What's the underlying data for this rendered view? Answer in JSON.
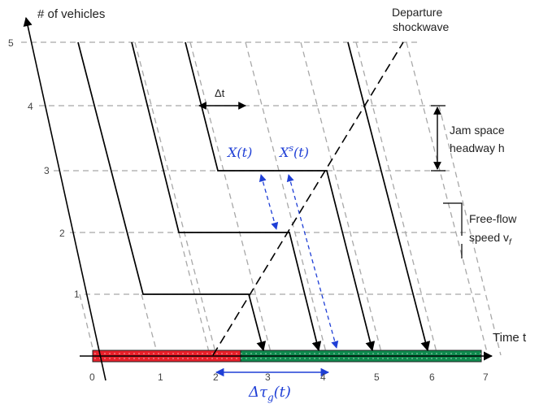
{
  "axes": {
    "y_label": "# of vehicles",
    "x_label": "Time t",
    "y_ticks": [
      "1",
      "2",
      "3",
      "4",
      "5"
    ],
    "x_ticks": [
      "0",
      "1",
      "2",
      "3",
      "4",
      "5",
      "6",
      "7"
    ]
  },
  "annotations": {
    "departure_line1": "Departure",
    "departure_line2": "shockwave",
    "delta_t": "Δt",
    "jam_line1": "Jam space",
    "jam_line2": "headway h",
    "free_line1": "Free-flow",
    "free_line2": "speed v",
    "free_sub": "f",
    "x_t": "X(t)",
    "xs_main": "X",
    "xs_sup": "s",
    "xs_tail": "(t)",
    "delta_tau_main": "Δτ",
    "delta_tau_sub": "g",
    "delta_tau_tail": "(t)"
  },
  "colors": {
    "red_phase": "#e8202a",
    "green_phase": "#0f8a4e",
    "blue_annotation": "#1f3fd6",
    "grid": "#a8a8a8"
  },
  "signal_phases": [
    {
      "phase": "red",
      "from": 0,
      "to": 2.5
    },
    {
      "phase": "green",
      "from": 2.5,
      "to": 7
    }
  ]
}
